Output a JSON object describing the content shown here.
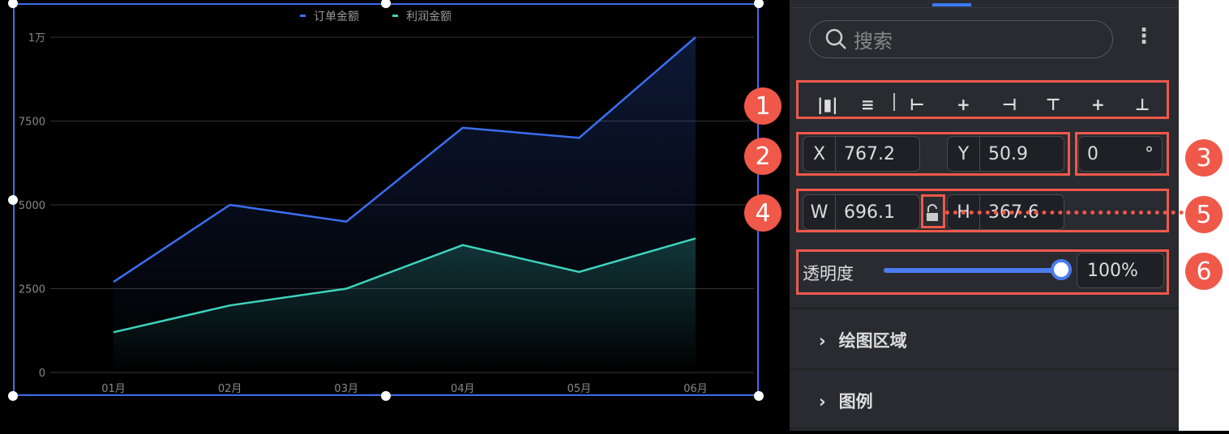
{
  "chart_data": {
    "type": "area",
    "categories": [
      "01月",
      "02月",
      "03月",
      "04月",
      "05月",
      "06月"
    ],
    "series": [
      {
        "name": "订单金额",
        "color": "#3b6ef0",
        "values": [
          2700,
          5000,
          4500,
          7300,
          7000,
          10000
        ]
      },
      {
        "name": "利润金额",
        "color": "#3ed3bd",
        "values": [
          1200,
          2000,
          2500,
          3800,
          3000,
          4000
        ]
      }
    ],
    "yticks": [
      "0",
      "2500",
      "5000",
      "7500",
      "1万"
    ],
    "ytick_values": [
      0,
      2500,
      5000,
      7500,
      10000
    ],
    "ylim": [
      0,
      10000
    ],
    "grid": true,
    "legend": "top-center"
  },
  "panel": {
    "search_placeholder": "搜索",
    "more_icon": "⋮",
    "align_icons": [
      "distribute-horizontal",
      "distribute-vertical",
      "align-left",
      "align-center-h",
      "align-right",
      "align-top",
      "align-middle-v",
      "align-bottom"
    ],
    "x_label": "X",
    "x_value": "767.2",
    "y_label": "Y",
    "y_value": "50.9",
    "rotation_value": "0",
    "rotation_unit": "°",
    "w_label": "W",
    "w_value": "696.1",
    "h_label": "H",
    "h_value": "367.6",
    "opacity_label": "透明度",
    "opacity_value": "100%",
    "opacity_level": 100,
    "sections": [
      "绘图区域",
      "图例"
    ]
  },
  "annotations": [
    "1",
    "2",
    "3",
    "4",
    "5",
    "6"
  ],
  "colors": {
    "annotation": "#f0584a",
    "accent": "#3b6ef0"
  }
}
